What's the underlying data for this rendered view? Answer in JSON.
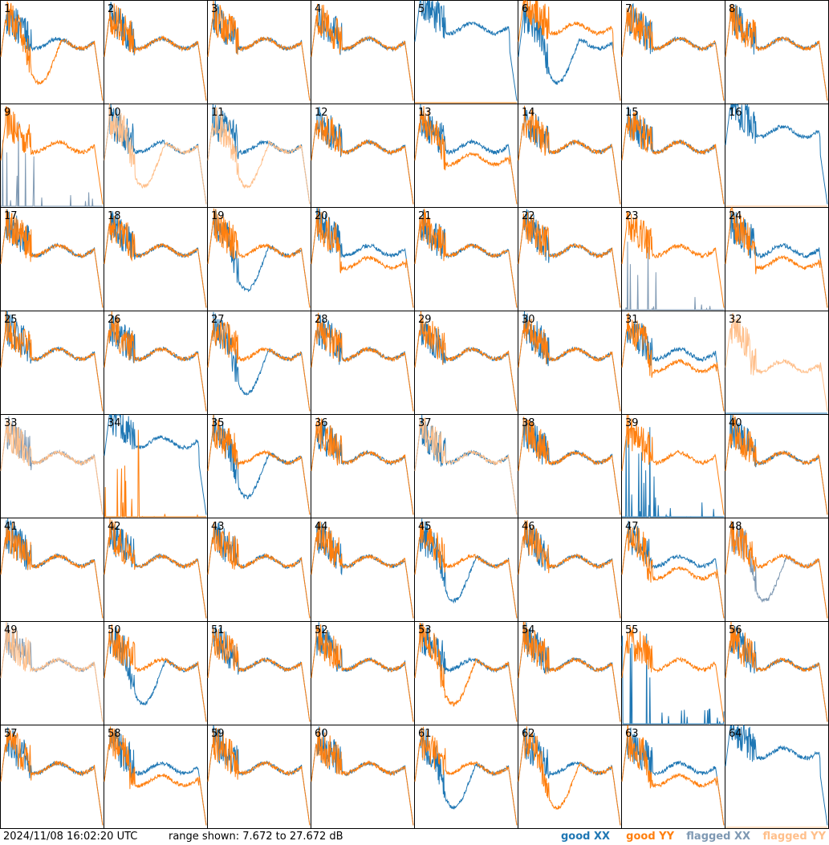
{
  "footer": {
    "timestamp": "2024/11/08 16:02:20 UTC",
    "range_text": "range shown: 7.672 to 27.672 dB"
  },
  "legend": [
    {
      "label": "good XX",
      "color": "#1f77b4"
    },
    {
      "label": "good YY",
      "color": "#ff7f0e"
    },
    {
      "label": "flagged XX",
      "color": "#7f99b3"
    },
    {
      "label": "flagged YY",
      "color": "#ffbf8a"
    }
  ],
  "chart_data": {
    "type": "line",
    "layout": "8x8 small multiples, one panel per antenna",
    "ylim": [
      7.672,
      27.672
    ],
    "yunit": "dB",
    "grid": false,
    "series_types": [
      "good XX",
      "good YY",
      "flagged XX",
      "flagged YY"
    ],
    "panels": [
      {
        "id": "1",
        "xx": "good",
        "yy": "good",
        "shape": {
          "xx": "standard",
          "yy": "dip"
        }
      },
      {
        "id": "2",
        "xx": "good",
        "yy": "good",
        "shape": {
          "xx": "standard",
          "yy": "standard"
        }
      },
      {
        "id": "3",
        "xx": "good",
        "yy": "good",
        "shape": {
          "xx": "standard",
          "yy": "standard"
        }
      },
      {
        "id": "4",
        "xx": "good",
        "yy": "good",
        "shape": {
          "xx": "standard",
          "yy": "standard"
        }
      },
      {
        "id": "5",
        "xx": "good",
        "yy": "good",
        "shape": {
          "xx": "high",
          "yy": "flat0"
        }
      },
      {
        "id": "6",
        "xx": "good",
        "yy": "good",
        "shape": {
          "xx": "dip",
          "yy": "high"
        }
      },
      {
        "id": "7",
        "xx": "good",
        "yy": "good",
        "shape": {
          "xx": "standard",
          "yy": "standard"
        }
      },
      {
        "id": "8",
        "xx": "good",
        "yy": "good",
        "shape": {
          "xx": "standard",
          "yy": "standard"
        }
      },
      {
        "id": "9",
        "xx": "flagged",
        "yy": "good",
        "shape": {
          "xx": "spikes",
          "yy": "standard"
        }
      },
      {
        "id": "10",
        "xx": "good",
        "yy": "flagged",
        "shape": {
          "xx": "standard",
          "yy": "dip"
        }
      },
      {
        "id": "11",
        "xx": "good",
        "yy": "flagged",
        "shape": {
          "xx": "standard",
          "yy": "dip"
        }
      },
      {
        "id": "12",
        "xx": "good",
        "yy": "good",
        "shape": {
          "xx": "standard",
          "yy": "standard"
        }
      },
      {
        "id": "13",
        "xx": "good",
        "yy": "good",
        "shape": {
          "xx": "standard",
          "yy": "lower"
        }
      },
      {
        "id": "14",
        "xx": "good",
        "yy": "good",
        "shape": {
          "xx": "standard",
          "yy": "standard"
        }
      },
      {
        "id": "15",
        "xx": "good",
        "yy": "good",
        "shape": {
          "xx": "standard",
          "yy": "standard"
        }
      },
      {
        "id": "16",
        "xx": "good",
        "yy": "flagged",
        "shape": {
          "xx": "high",
          "yy": "flat0"
        }
      },
      {
        "id": "17",
        "xx": "good",
        "yy": "good",
        "shape": {
          "xx": "standard",
          "yy": "standard"
        }
      },
      {
        "id": "18",
        "xx": "good",
        "yy": "good",
        "shape": {
          "xx": "standard",
          "yy": "standard"
        }
      },
      {
        "id": "19",
        "xx": "good",
        "yy": "good",
        "shape": {
          "xx": "dip",
          "yy": "standard"
        }
      },
      {
        "id": "20",
        "xx": "good",
        "yy": "good",
        "shape": {
          "xx": "standard",
          "yy": "lower"
        }
      },
      {
        "id": "21",
        "xx": "good",
        "yy": "good",
        "shape": {
          "xx": "standard",
          "yy": "standard"
        }
      },
      {
        "id": "22",
        "xx": "good",
        "yy": "good",
        "shape": {
          "xx": "standard",
          "yy": "standard"
        }
      },
      {
        "id": "23",
        "xx": "flagged",
        "yy": "good",
        "shape": {
          "xx": "spikes",
          "yy": "standard"
        }
      },
      {
        "id": "24",
        "xx": "good",
        "yy": "good",
        "shape": {
          "xx": "standard",
          "yy": "lower"
        }
      },
      {
        "id": "25",
        "xx": "good",
        "yy": "good",
        "shape": {
          "xx": "standard",
          "yy": "standard"
        }
      },
      {
        "id": "26",
        "xx": "good",
        "yy": "good",
        "shape": {
          "xx": "standard",
          "yy": "standard"
        }
      },
      {
        "id": "27",
        "xx": "good",
        "yy": "good",
        "shape": {
          "xx": "dip",
          "yy": "standard"
        }
      },
      {
        "id": "28",
        "xx": "good",
        "yy": "good",
        "shape": {
          "xx": "standard",
          "yy": "standard"
        }
      },
      {
        "id": "29",
        "xx": "good",
        "yy": "good",
        "shape": {
          "xx": "standard",
          "yy": "standard"
        }
      },
      {
        "id": "30",
        "xx": "good",
        "yy": "good",
        "shape": {
          "xx": "standard",
          "yy": "standard"
        }
      },
      {
        "id": "31",
        "xx": "good",
        "yy": "good",
        "shape": {
          "xx": "standard",
          "yy": "lower"
        }
      },
      {
        "id": "32",
        "xx": "good",
        "yy": "flagged",
        "shape": {
          "xx": "flat0",
          "yy": "lower"
        }
      },
      {
        "id": "33",
        "xx": "flagged",
        "yy": "flagged",
        "shape": {
          "xx": "standard",
          "yy": "standard"
        }
      },
      {
        "id": "34",
        "xx": "good",
        "yy": "good",
        "shape": {
          "xx": "high",
          "yy": "spikes"
        }
      },
      {
        "id": "35",
        "xx": "good",
        "yy": "good",
        "shape": {
          "xx": "dip",
          "yy": "standard"
        }
      },
      {
        "id": "36",
        "xx": "good",
        "yy": "good",
        "shape": {
          "xx": "standard",
          "yy": "standard"
        }
      },
      {
        "id": "37",
        "xx": "good",
        "yy": "flagged",
        "shape": {
          "xx": "standard",
          "yy": "standard"
        }
      },
      {
        "id": "38",
        "xx": "good",
        "yy": "good",
        "shape": {
          "xx": "standard",
          "yy": "standard"
        }
      },
      {
        "id": "39",
        "xx": "good",
        "yy": "good",
        "shape": {
          "xx": "spikes",
          "yy": "standard"
        }
      },
      {
        "id": "40",
        "xx": "good",
        "yy": "good",
        "shape": {
          "xx": "standard",
          "yy": "standard"
        }
      },
      {
        "id": "41",
        "xx": "good",
        "yy": "good",
        "shape": {
          "xx": "standard",
          "yy": "standard"
        }
      },
      {
        "id": "42",
        "xx": "good",
        "yy": "good",
        "shape": {
          "xx": "standard",
          "yy": "standard"
        }
      },
      {
        "id": "43",
        "xx": "good",
        "yy": "good",
        "shape": {
          "xx": "standard",
          "yy": "standard"
        }
      },
      {
        "id": "44",
        "xx": "good",
        "yy": "good",
        "shape": {
          "xx": "standard",
          "yy": "standard"
        }
      },
      {
        "id": "45",
        "xx": "good",
        "yy": "good",
        "shape": {
          "xx": "dip",
          "yy": "standard"
        }
      },
      {
        "id": "46",
        "xx": "good",
        "yy": "good",
        "shape": {
          "xx": "standard",
          "yy": "standard"
        }
      },
      {
        "id": "47",
        "xx": "good",
        "yy": "good",
        "shape": {
          "xx": "standard",
          "yy": "lower"
        }
      },
      {
        "id": "48",
        "xx": "flagged",
        "yy": "good",
        "shape": {
          "xx": "dip",
          "yy": "standard"
        }
      },
      {
        "id": "49",
        "xx": "flagged",
        "yy": "flagged",
        "shape": {
          "xx": "standard",
          "yy": "standard"
        }
      },
      {
        "id": "50",
        "xx": "good",
        "yy": "good",
        "shape": {
          "xx": "dip",
          "yy": "standard"
        }
      },
      {
        "id": "51",
        "xx": "good",
        "yy": "good",
        "shape": {
          "xx": "standard",
          "yy": "standard"
        }
      },
      {
        "id": "52",
        "xx": "good",
        "yy": "good",
        "shape": {
          "xx": "standard",
          "yy": "standard"
        }
      },
      {
        "id": "53",
        "xx": "good",
        "yy": "good",
        "shape": {
          "xx": "standard",
          "yy": "dip"
        }
      },
      {
        "id": "54",
        "xx": "good",
        "yy": "good",
        "shape": {
          "xx": "standard",
          "yy": "standard"
        }
      },
      {
        "id": "55",
        "xx": "good",
        "yy": "good",
        "shape": {
          "xx": "spikes",
          "yy": "standard"
        }
      },
      {
        "id": "56",
        "xx": "good",
        "yy": "good",
        "shape": {
          "xx": "standard",
          "yy": "standard"
        }
      },
      {
        "id": "57",
        "xx": "good",
        "yy": "good",
        "shape": {
          "xx": "standard",
          "yy": "standard"
        }
      },
      {
        "id": "58",
        "xx": "good",
        "yy": "good",
        "shape": {
          "xx": "standard",
          "yy": "lower"
        }
      },
      {
        "id": "59",
        "xx": "good",
        "yy": "good",
        "shape": {
          "xx": "standard",
          "yy": "standard"
        }
      },
      {
        "id": "60",
        "xx": "good",
        "yy": "good",
        "shape": {
          "xx": "standard",
          "yy": "standard"
        }
      },
      {
        "id": "61",
        "xx": "good",
        "yy": "good",
        "shape": {
          "xx": "dip",
          "yy": "standard"
        }
      },
      {
        "id": "62",
        "xx": "good",
        "yy": "good",
        "shape": {
          "xx": "standard",
          "yy": "dip"
        }
      },
      {
        "id": "63",
        "xx": "good",
        "yy": "good",
        "shape": {
          "xx": "standard",
          "yy": "lower"
        }
      },
      {
        "id": "64",
        "xx": "good",
        "yy": "flagged",
        "shape": {
          "xx": "high",
          "yy": "flat0"
        }
      }
    ]
  }
}
